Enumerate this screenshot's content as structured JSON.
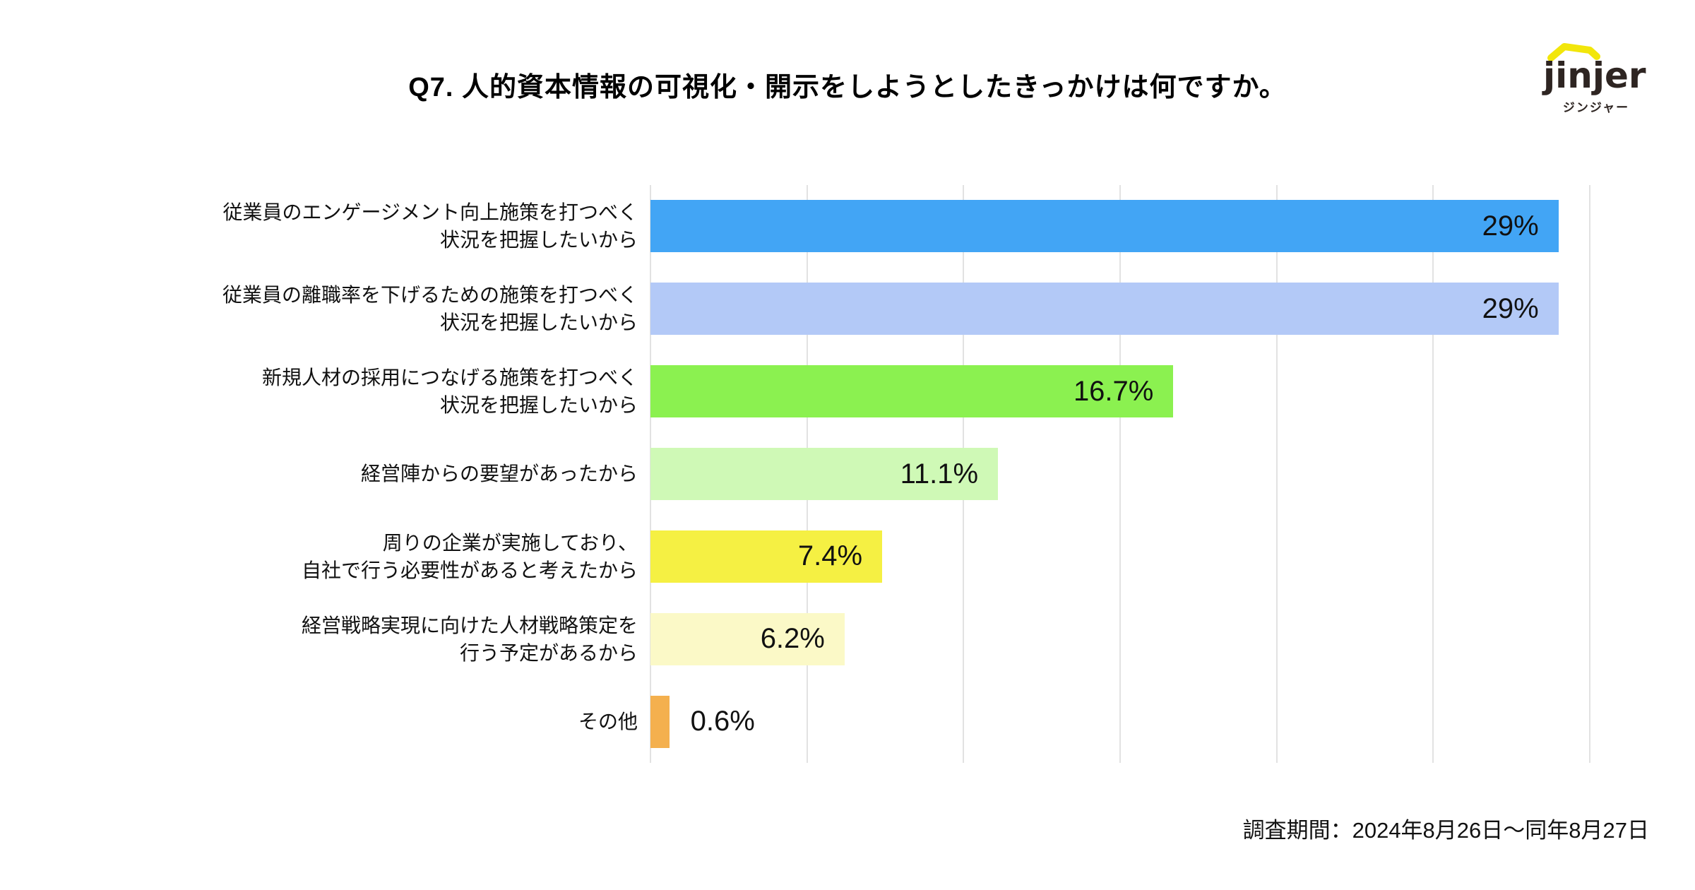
{
  "title": "Q7. 人的資本情報の可視化・開示をしようとしたきっかけは何ですか。",
  "logo": {
    "wordmark": "jinjer",
    "katakana": "ジンジャー",
    "swoosh_color": "#F2E60B",
    "text_color": "#2E2522"
  },
  "footer": {
    "survey_period": "調査期間：2024年8月26日〜同年8月27日"
  },
  "chart_data": {
    "type": "bar",
    "orientation": "horizontal",
    "title": "Q7. 人的資本情報の可視化・開示をしようとしたきっかけは何ですか。",
    "categories": [
      "従業員のエンゲージメント向上施策を打つべく\n状況を把握したいから",
      "従業員の離職率を下げるための施策を打つべく\n状況を把握したいから",
      "新規人材の採用につなげる施策を打つべく\n状況を把握したいから",
      "経営陣からの要望があったから",
      "周りの企業が実施しており、\n自社で行う必要性があると考えたから",
      "経営戦略実現に向けた人材戦略策定を\n行う予定があるから",
      "その他"
    ],
    "values": [
      29,
      29,
      16.7,
      11.1,
      7.4,
      6.2,
      0.6
    ],
    "value_labels": [
      "29%",
      "29%",
      "16.7%",
      "11.1%",
      "7.4%",
      "6.2%",
      "0.6%"
    ],
    "bar_colors": [
      "#42A5F5",
      "#B3C9F7",
      "#8BF150",
      "#CFF9B6",
      "#F5F043",
      "#FBF9C7",
      "#F4B04E"
    ],
    "xlim": [
      0,
      30
    ],
    "gridline_step": 5,
    "grid": true,
    "gridline_color": "#E2E2E2",
    "inside_label_min_value": 3
  }
}
